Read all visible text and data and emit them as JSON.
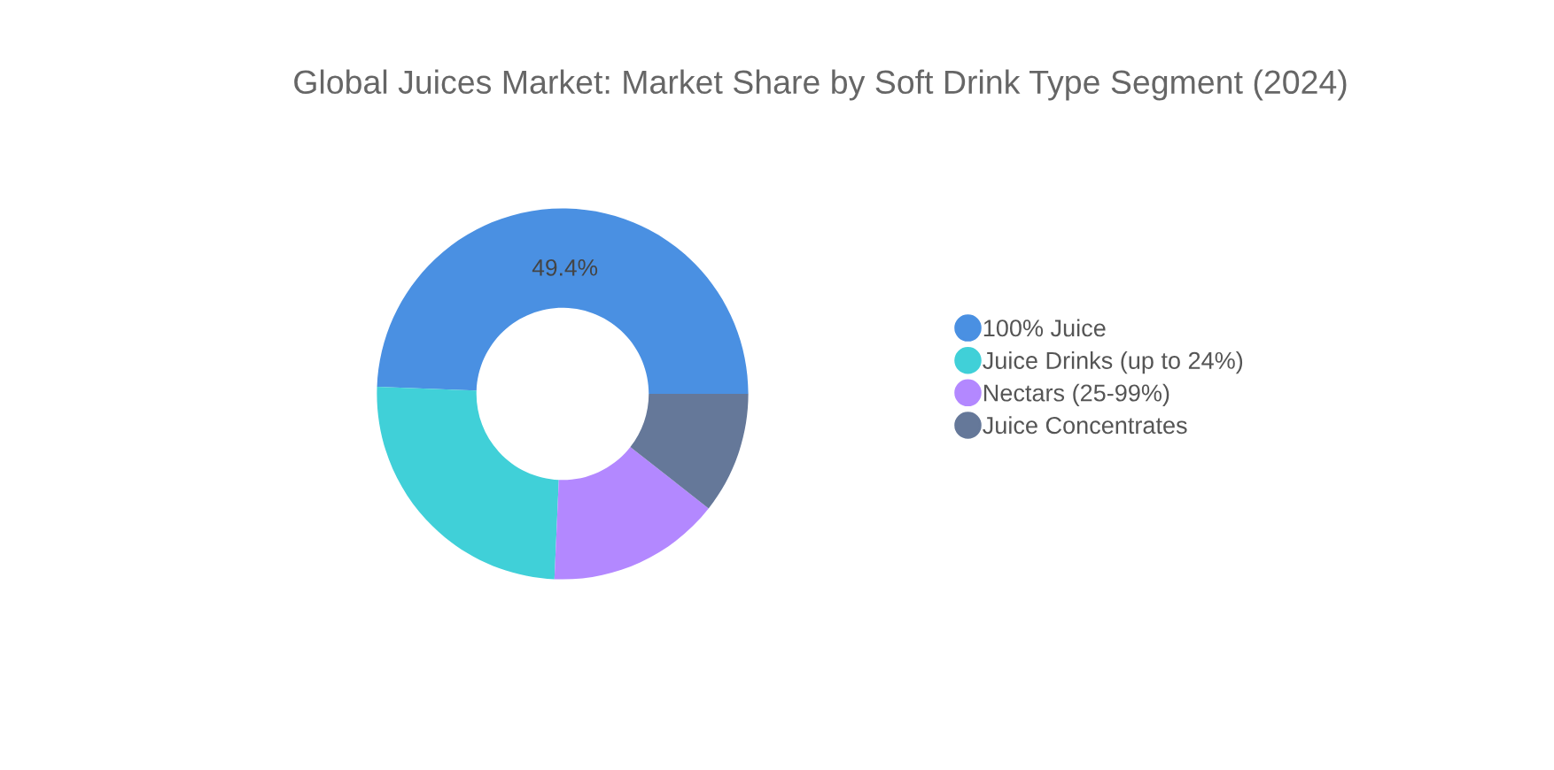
{
  "chart_data": {
    "type": "donut",
    "title": "Global Juices Market: Market Share by Soft Drink Type Segment (2024)",
    "categories": [
      "100% Juice",
      "Juice Drinks (up to 24%)",
      "Nectars (25-99%)",
      "Juice Concentrates"
    ],
    "values": [
      49.4,
      24.9,
      15.1,
      10.6
    ],
    "colors": [
      "#4a90e2",
      "#40d0d8",
      "#b388ff",
      "#657899"
    ],
    "value_labels": [
      "49.4%",
      null,
      null,
      null
    ],
    "legend": "right"
  }
}
